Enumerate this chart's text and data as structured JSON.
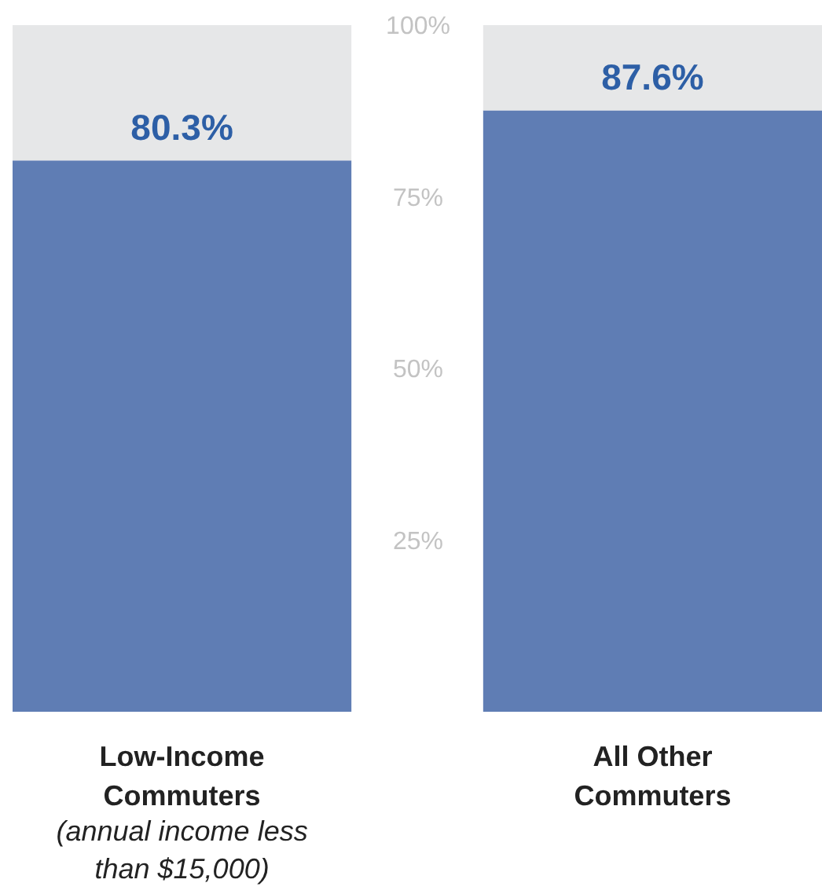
{
  "chart_data": {
    "type": "bar",
    "stacked": true,
    "categories": [
      "Low-Income Commuters",
      "All Other Commuters"
    ],
    "series": [
      {
        "color": "#5f7db4",
        "values": [
          80.3,
          87.6
        ],
        "value_labels": [
          "80.3%",
          "87.6%"
        ]
      },
      {
        "color": "#e6e7e8",
        "values": [
          19.7,
          12.4
        ]
      }
    ],
    "ylim": [
      0,
      100
    ],
    "yticks": [
      {
        "value": 25,
        "label": "25%"
      },
      {
        "value": 50,
        "label": "50%"
      },
      {
        "value": 75,
        "label": "75%"
      },
      {
        "value": 100,
        "label": "100%"
      }
    ],
    "annotations": [
      "(annual income less than $15,000)"
    ],
    "grid": false
  }
}
